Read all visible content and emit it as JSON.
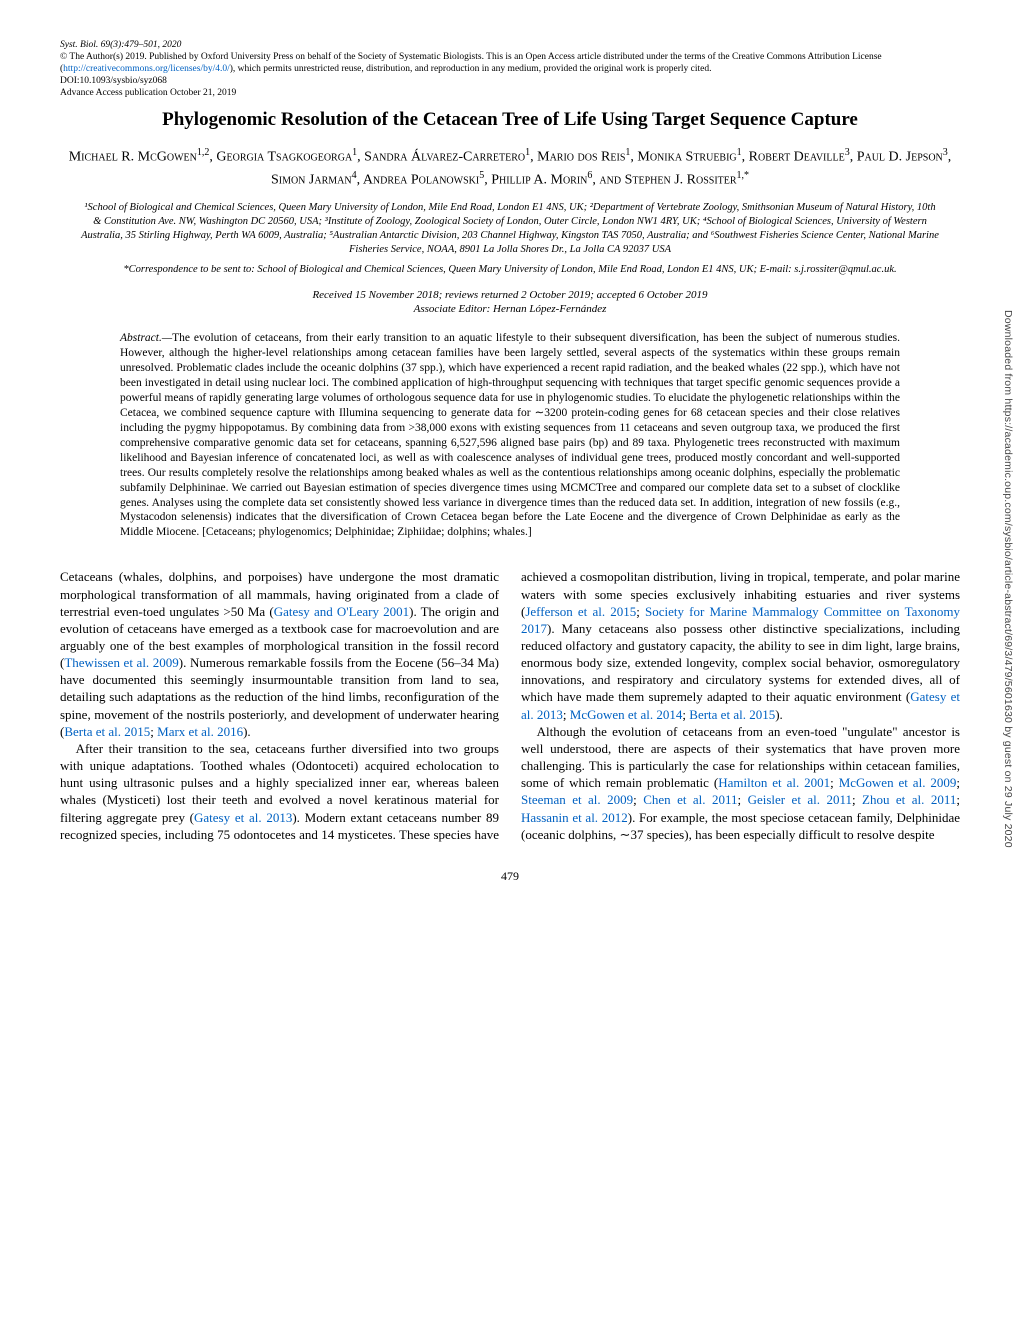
{
  "meta": {
    "journal_line": "Syst. Biol. 69(3):479–501, 2020",
    "copyright": "© The Author(s) 2019. Published by Oxford University Press on behalf of the Society of Systematic Biologists. This is an Open Access article distributed under the terms of the Creative Commons Attribution License (",
    "license_url_text": "http://creativecommons.org/licenses/by/4.0/",
    "license_tail": "), which permits unrestricted reuse, distribution, and reproduction in any medium, provided the original work is properly cited.",
    "doi": "DOI:10.1093/sysbio/syz068",
    "advance": "Advance Access publication October 21, 2019"
  },
  "title": "Phylogenomic Resolution of the Cetacean Tree of Life Using Target Sequence Capture",
  "authors_html": "Michael R. McGowen<sup>1,2</sup>, Georgia Tsagkogeorga<sup>1</sup>, Sandra Álvarez-Carretero<sup>1</sup>, Mario dos Reis<sup>1</sup>, Monika Struebig<sup>1</sup>, Robert Deaville<sup>3</sup>, Paul D. Jepson<sup>3</sup>, Simon Jarman<sup>4</sup>, Andrea Polanowski<sup>5</sup>, Phillip A. Morin<sup>6</sup>, and Stephen J. Rossiter<sup>1,*</sup>",
  "affiliations": "¹School of Biological and Chemical Sciences, Queen Mary University of London, Mile End Road, London E1 4NS, UK; ²Department of Vertebrate Zoology, Smithsonian Museum of Natural History, 10th & Constitution Ave. NW, Washington DC 20560, USA; ³Institute of Zoology, Zoological Society of London, Outer Circle, London NW1 4RY, UK; ⁴School of Biological Sciences, University of Western Australia, 35 Stirling Highway, Perth WA 6009, Australia; ⁵Australian Antarctic Division, 203 Channel Highway, Kingston TAS 7050, Australia; and ⁶Southwest Fisheries Science Center, National Marine Fisheries Service, NOAA, 8901 La Jolla Shores Dr., La Jolla CA 92037 USA",
  "correspondence": "*Correspondence to be sent to: School of Biological and Chemical Sciences, Queen Mary University of London, Mile End Road, London E1 4NS, UK; E-mail: s.j.rossiter@qmul.ac.uk.",
  "received": "Received 15 November 2018; reviews returned 2 October 2019; accepted 6 October 2019",
  "editor": "Associate Editor: Hernan López-Fernández",
  "abstract_label": "Abstract.—",
  "abstract_body": "The evolution of cetaceans, from their early transition to an aquatic lifestyle to their subsequent diversification, has been the subject of numerous studies. However, although the higher-level relationships among cetacean families have been largely settled, several aspects of the systematics within these groups remain unresolved. Problematic clades include the oceanic dolphins (37 spp.), which have experienced a recent rapid radiation, and the beaked whales (22 spp.), which have not been investigated in detail using nuclear loci. The combined application of high-throughput sequencing with techniques that target specific genomic sequences provide a powerful means of rapidly generating large volumes of orthologous sequence data for use in phylogenomic studies. To elucidate the phylogenetic relationships within the Cetacea, we combined sequence capture with Illumina sequencing to generate data for ∼3200 protein-coding genes for 68 cetacean species and their close relatives including the pygmy hippopotamus. By combining data from >38,000 exons with existing sequences from 11 cetaceans and seven outgroup taxa, we produced the first comprehensive comparative genomic data set for cetaceans, spanning 6,527,596 aligned base pairs (bp) and 89 taxa. Phylogenetic trees reconstructed with maximum likelihood and Bayesian inference of concatenated loci, as well as with coalescence analyses of individual gene trees, produced mostly concordant and well-supported trees. Our results completely resolve the relationships among beaked whales as well as the contentious relationships among oceanic dolphins, especially the problematic subfamily Delphininae. We carried out Bayesian estimation of species divergence times using MCMCTree and compared our complete data set to a subset of clocklike genes. Analyses using the complete data set consistently showed less variance in divergence times than the reduced data set. In addition, integration of new fossils (e.g., Mystacodon selenensis) indicates that the diversification of Crown Cetacea began before the Late Eocene and the divergence of Crown Delphinidae as early as the Middle Miocene. [Cetaceans; phylogenomics; Delphinidae; Ziphiidae; dolphins; whales.]",
  "body": {
    "p1a": "Cetaceans (whales, dolphins, and porpoises) have undergone the most dramatic morphological transformation of all mammals, having originated from a clade of terrestrial even-toed ungulates >50 Ma (",
    "r1": "Gatesy and O'Leary 2001",
    "p1b": "). The origin and evolution of cetaceans have emerged as a textbook case for macroevolution and are arguably one of the best examples of morphological transition in the fossil record (",
    "r2": "Thewissen et al. 2009",
    "p1c": "). Numerous remarkable fossils from the Eocene (56–34 Ma) have documented this seemingly insurmountable transition from land to sea, detailing such adaptations as the reduction of the hind limbs, reconfiguration of the spine, movement of the nostrils posteriorly, and development of underwater hearing (",
    "r3": "Berta et al. 2015",
    "p1d": "; ",
    "r4": "Marx et al. 2016",
    "p1e": ").",
    "p2a": "After their transition to the sea, cetaceans further diversified into two groups with unique adaptations. Toothed whales (Odontoceti) acquired echolocation to hunt using ultrasonic pulses and a highly specialized inner ear, whereas baleen whales (Mysticeti) lost their teeth and evolved a novel keratinous material for filtering aggregate prey (",
    "r5": "Gatesy et al. 2013",
    "p2b": "). Modern extant cetaceans number 89 recognized species, including 75 odontocetes and 14 mysticetes. These species have achieved a cosmopolitan distribution, living in tropical, temperate, and polar marine waters with some species exclusively inhabiting estuaries and river systems (",
    "r6": "Jefferson et al. 2015",
    "p2c": "; ",
    "r7": "Society for Marine Mammalogy Committee on Taxonomy 2017",
    "p2d": "). Many cetaceans also possess other distinctive specializations, including reduced olfactory and gustatory capacity, the ability to see in dim light, large brains, enormous body size, extended longevity, complex social behavior, osmoregulatory innovations, and respiratory and circulatory systems for extended dives, all of which have made them supremely adapted to their aquatic environment (",
    "r8": "Gatesy et al. 2013",
    "p2e": "; ",
    "r9": "McGowen et al. 2014",
    "p2f": "; ",
    "r10": "Berta et al. 2015",
    "p2g": ").",
    "p3a": "Although the evolution of cetaceans from an even-toed \"ungulate\" ancestor is well understood, there are aspects of their systematics that have proven more challenging. This is particularly the case for relationships within cetacean families, some of which remain problematic (",
    "r11": "Hamilton et al. 2001",
    "p3b": "; ",
    "r12": "McGowen et al. 2009",
    "p3c": "; ",
    "r13": "Steeman et al. 2009",
    "p3d": "; ",
    "r14": "Chen et al. 2011",
    "p3e": "; ",
    "r15": "Geisler et al. 2011",
    "p3f": "; ",
    "r16": "Zhou et al. 2011",
    "p3g": "; ",
    "r17": "Hassanin et al. 2012",
    "p3h": "). For example, the most speciose cetacean family, Delphinidae (oceanic dolphins, ∼37 species), has been especially difficult to resolve despite"
  },
  "page_number": "479",
  "side_tab": "Downloaded from https://academic.oup.com/sysbio/article-abstract/69/3/479/5601630 by guest on 29 July 2020"
}
